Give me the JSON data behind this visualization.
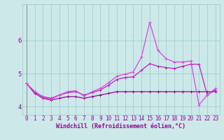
{
  "xlabel": "Windchill (Refroidissement éolien,°C)",
  "bg_color": "#cce8e8",
  "grid_color": "#99cccc",
  "line_color_dark": "#990099",
  "line_color_mid": "#bb22bb",
  "line_color_light": "#dd44dd",
  "x": [
    0,
    1,
    2,
    3,
    4,
    5,
    6,
    7,
    8,
    9,
    10,
    11,
    12,
    13,
    14,
    15,
    16,
    17,
    18,
    19,
    20,
    21,
    22,
    23
  ],
  "y_flat": [
    4.7,
    4.4,
    4.25,
    4.2,
    4.25,
    4.3,
    4.3,
    4.25,
    4.3,
    4.35,
    4.4,
    4.45,
    4.45,
    4.45,
    4.45,
    4.45,
    4.45,
    4.45,
    4.45,
    4.45,
    4.45,
    4.45,
    4.45,
    4.45
  ],
  "y_linear": [
    4.7,
    4.45,
    4.3,
    4.25,
    4.35,
    4.42,
    4.45,
    4.35,
    4.42,
    4.5,
    4.65,
    4.82,
    4.88,
    4.9,
    5.1,
    5.3,
    5.22,
    5.18,
    5.15,
    5.22,
    5.28,
    5.28,
    4.35,
    4.5
  ],
  "y_spike": [
    4.7,
    4.45,
    4.28,
    4.22,
    4.35,
    4.45,
    4.48,
    4.32,
    4.45,
    4.55,
    4.72,
    4.92,
    4.98,
    5.05,
    5.5,
    6.55,
    5.7,
    5.45,
    5.35,
    5.35,
    5.38,
    4.05,
    4.35,
    4.55
  ],
  "ylim": [
    3.75,
    7.1
  ],
  "xlim": [
    -0.5,
    23.5
  ],
  "yticks": [
    4,
    5,
    6
  ],
  "xticks": [
    0,
    1,
    2,
    3,
    4,
    5,
    6,
    7,
    8,
    9,
    10,
    11,
    12,
    13,
    14,
    15,
    16,
    17,
    18,
    19,
    20,
    21,
    22,
    23
  ],
  "marker": "+",
  "markersize": 3,
  "linewidth": 0.9,
  "xlabel_fontsize": 6,
  "tick_fontsize": 5.5
}
